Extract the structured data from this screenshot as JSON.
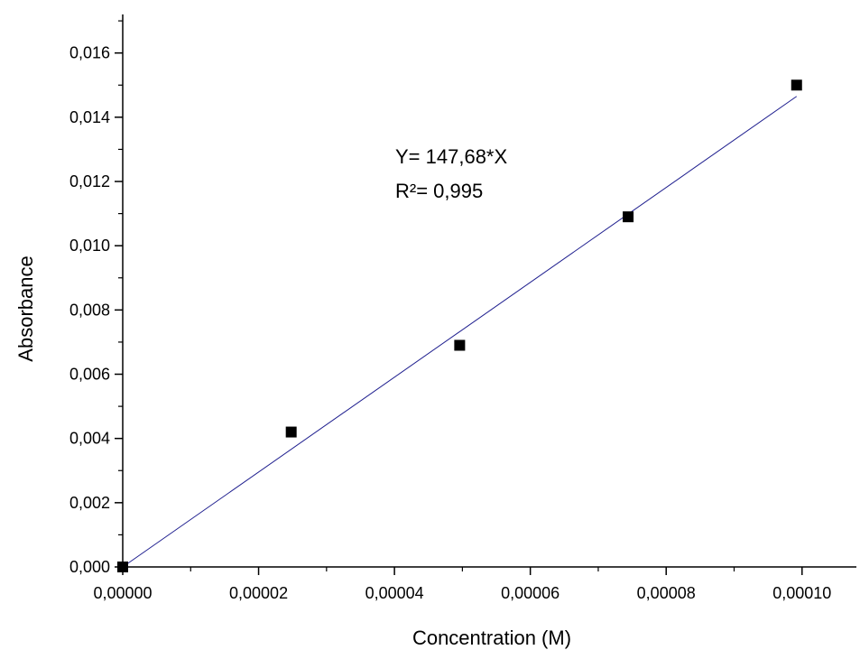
{
  "chart_data": {
    "type": "scatter",
    "xlabel": "Concentration (M)",
    "ylabel": "Absorbance",
    "xlim": [
      0,
      0.000108
    ],
    "ylim": [
      0,
      0.0172
    ],
    "xticks": [
      "0,00000",
      "0,00002",
      "0,00004",
      "0,00006",
      "0,00008",
      "0,00010"
    ],
    "yticks": [
      "0,000",
      "0,002",
      "0,004",
      "0,006",
      "0,008",
      "0,010",
      "0,012",
      "0,014",
      "0,016"
    ],
    "points": [
      {
        "x": 0.0,
        "y": 0.0
      },
      {
        "x": 2.48e-05,
        "y": 0.0042
      },
      {
        "x": 4.96e-05,
        "y": 0.0069
      },
      {
        "x": 7.44e-05,
        "y": 0.0109
      },
      {
        "x": 9.92e-05,
        "y": 0.015
      }
    ],
    "fit": {
      "slope": 147.68,
      "x_from": 0.0,
      "x_to": 9.92e-05,
      "color": "#1f1f8f"
    },
    "annotations": [
      "Y= 147,68*X",
      "R²= 0,995"
    ],
    "grid": false,
    "marker_color": "#000000"
  }
}
